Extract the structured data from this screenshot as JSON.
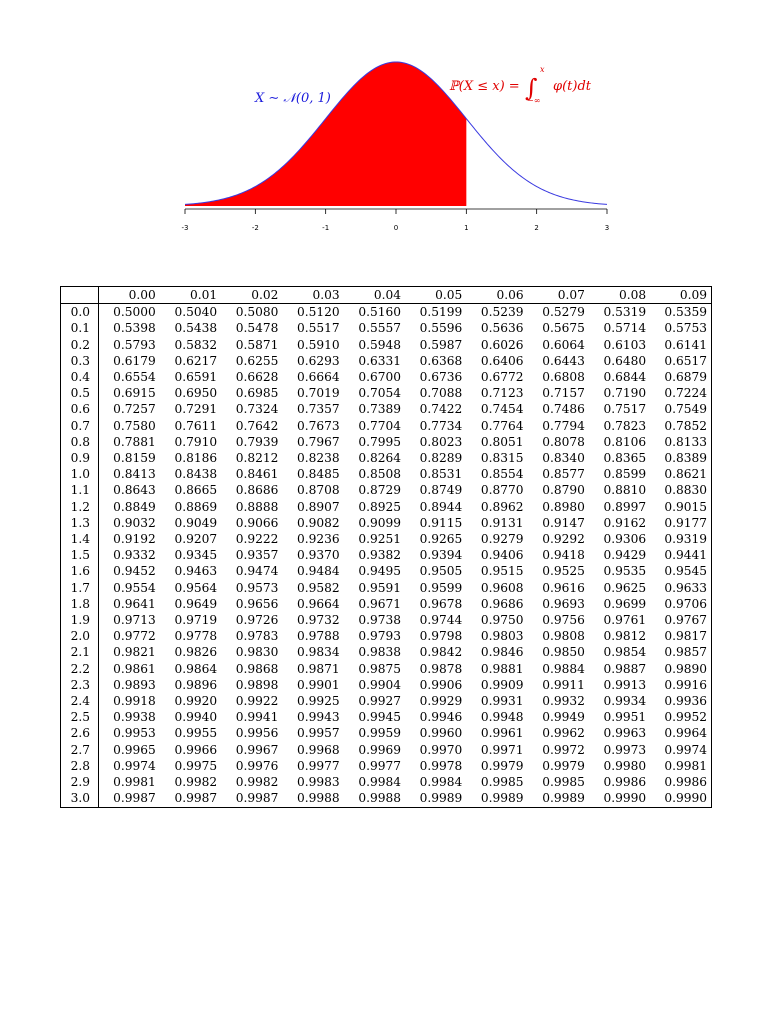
{
  "figure": {
    "distribution_label": "X ∼ 𝒩(0, 1)",
    "cdf_label_left": "ℙ(X ≤ x) =",
    "integral_symbol": "∫",
    "integral_upper": "x",
    "integral_lower": "−∞",
    "integrand": "φ(t)dt",
    "x_ticks": [
      "-3",
      "-2",
      "-1",
      "0",
      "1",
      "2",
      "3"
    ],
    "shaded_to_x": 1,
    "colors": {
      "curve": "#3a3ae0",
      "fill": "#ff0000",
      "dist_label": "#1a1adb",
      "cdf_label": "#e00000"
    }
  },
  "table": {
    "columns": [
      "0.00",
      "0.01",
      "0.02",
      "0.03",
      "0.04",
      "0.05",
      "0.06",
      "0.07",
      "0.08",
      "0.09"
    ],
    "rows": [
      {
        "z": "0.0",
        "v": [
          "0.5000",
          "0.5040",
          "0.5080",
          "0.5120",
          "0.5160",
          "0.5199",
          "0.5239",
          "0.5279",
          "0.5319",
          "0.5359"
        ]
      },
      {
        "z": "0.1",
        "v": [
          "0.5398",
          "0.5438",
          "0.5478",
          "0.5517",
          "0.5557",
          "0.5596",
          "0.5636",
          "0.5675",
          "0.5714",
          "0.5753"
        ]
      },
      {
        "z": "0.2",
        "v": [
          "0.5793",
          "0.5832",
          "0.5871",
          "0.5910",
          "0.5948",
          "0.5987",
          "0.6026",
          "0.6064",
          "0.6103",
          "0.6141"
        ]
      },
      {
        "z": "0.3",
        "v": [
          "0.6179",
          "0.6217",
          "0.6255",
          "0.6293",
          "0.6331",
          "0.6368",
          "0.6406",
          "0.6443",
          "0.6480",
          "0.6517"
        ]
      },
      {
        "z": "0.4",
        "v": [
          "0.6554",
          "0.6591",
          "0.6628",
          "0.6664",
          "0.6700",
          "0.6736",
          "0.6772",
          "0.6808",
          "0.6844",
          "0.6879"
        ]
      },
      {
        "z": "0.5",
        "v": [
          "0.6915",
          "0.6950",
          "0.6985",
          "0.7019",
          "0.7054",
          "0.7088",
          "0.7123",
          "0.7157",
          "0.7190",
          "0.7224"
        ]
      },
      {
        "z": "0.6",
        "v": [
          "0.7257",
          "0.7291",
          "0.7324",
          "0.7357",
          "0.7389",
          "0.7422",
          "0.7454",
          "0.7486",
          "0.7517",
          "0.7549"
        ]
      },
      {
        "z": "0.7",
        "v": [
          "0.7580",
          "0.7611",
          "0.7642",
          "0.7673",
          "0.7704",
          "0.7734",
          "0.7764",
          "0.7794",
          "0.7823",
          "0.7852"
        ]
      },
      {
        "z": "0.8",
        "v": [
          "0.7881",
          "0.7910",
          "0.7939",
          "0.7967",
          "0.7995",
          "0.8023",
          "0.8051",
          "0.8078",
          "0.8106",
          "0.8133"
        ]
      },
      {
        "z": "0.9",
        "v": [
          "0.8159",
          "0.8186",
          "0.8212",
          "0.8238",
          "0.8264",
          "0.8289",
          "0.8315",
          "0.8340",
          "0.8365",
          "0.8389"
        ]
      },
      {
        "z": "1.0",
        "v": [
          "0.8413",
          "0.8438",
          "0.8461",
          "0.8485",
          "0.8508",
          "0.8531",
          "0.8554",
          "0.8577",
          "0.8599",
          "0.8621"
        ]
      },
      {
        "z": "1.1",
        "v": [
          "0.8643",
          "0.8665",
          "0.8686",
          "0.8708",
          "0.8729",
          "0.8749",
          "0.8770",
          "0.8790",
          "0.8810",
          "0.8830"
        ]
      },
      {
        "z": "1.2",
        "v": [
          "0.8849",
          "0.8869",
          "0.8888",
          "0.8907",
          "0.8925",
          "0.8944",
          "0.8962",
          "0.8980",
          "0.8997",
          "0.9015"
        ]
      },
      {
        "z": "1.3",
        "v": [
          "0.9032",
          "0.9049",
          "0.9066",
          "0.9082",
          "0.9099",
          "0.9115",
          "0.9131",
          "0.9147",
          "0.9162",
          "0.9177"
        ]
      },
      {
        "z": "1.4",
        "v": [
          "0.9192",
          "0.9207",
          "0.9222",
          "0.9236",
          "0.9251",
          "0.9265",
          "0.9279",
          "0.9292",
          "0.9306",
          "0.9319"
        ]
      },
      {
        "z": "1.5",
        "v": [
          "0.9332",
          "0.9345",
          "0.9357",
          "0.9370",
          "0.9382",
          "0.9394",
          "0.9406",
          "0.9418",
          "0.9429",
          "0.9441"
        ]
      },
      {
        "z": "1.6",
        "v": [
          "0.9452",
          "0.9463",
          "0.9474",
          "0.9484",
          "0.9495",
          "0.9505",
          "0.9515",
          "0.9525",
          "0.9535",
          "0.9545"
        ]
      },
      {
        "z": "1.7",
        "v": [
          "0.9554",
          "0.9564",
          "0.9573",
          "0.9582",
          "0.9591",
          "0.9599",
          "0.9608",
          "0.9616",
          "0.9625",
          "0.9633"
        ]
      },
      {
        "z": "1.8",
        "v": [
          "0.9641",
          "0.9649",
          "0.9656",
          "0.9664",
          "0.9671",
          "0.9678",
          "0.9686",
          "0.9693",
          "0.9699",
          "0.9706"
        ]
      },
      {
        "z": "1.9",
        "v": [
          "0.9713",
          "0.9719",
          "0.9726",
          "0.9732",
          "0.9738",
          "0.9744",
          "0.9750",
          "0.9756",
          "0.9761",
          "0.9767"
        ]
      },
      {
        "z": "2.0",
        "v": [
          "0.9772",
          "0.9778",
          "0.9783",
          "0.9788",
          "0.9793",
          "0.9798",
          "0.9803",
          "0.9808",
          "0.9812",
          "0.9817"
        ]
      },
      {
        "z": "2.1",
        "v": [
          "0.9821",
          "0.9826",
          "0.9830",
          "0.9834",
          "0.9838",
          "0.9842",
          "0.9846",
          "0.9850",
          "0.9854",
          "0.9857"
        ]
      },
      {
        "z": "2.2",
        "v": [
          "0.9861",
          "0.9864",
          "0.9868",
          "0.9871",
          "0.9875",
          "0.9878",
          "0.9881",
          "0.9884",
          "0.9887",
          "0.9890"
        ]
      },
      {
        "z": "2.3",
        "v": [
          "0.9893",
          "0.9896",
          "0.9898",
          "0.9901",
          "0.9904",
          "0.9906",
          "0.9909",
          "0.9911",
          "0.9913",
          "0.9916"
        ]
      },
      {
        "z": "2.4",
        "v": [
          "0.9918",
          "0.9920",
          "0.9922",
          "0.9925",
          "0.9927",
          "0.9929",
          "0.9931",
          "0.9932",
          "0.9934",
          "0.9936"
        ]
      },
      {
        "z": "2.5",
        "v": [
          "0.9938",
          "0.9940",
          "0.9941",
          "0.9943",
          "0.9945",
          "0.9946",
          "0.9948",
          "0.9949",
          "0.9951",
          "0.9952"
        ]
      },
      {
        "z": "2.6",
        "v": [
          "0.9953",
          "0.9955",
          "0.9956",
          "0.9957",
          "0.9959",
          "0.9960",
          "0.9961",
          "0.9962",
          "0.9963",
          "0.9964"
        ]
      },
      {
        "z": "2.7",
        "v": [
          "0.9965",
          "0.9966",
          "0.9967",
          "0.9968",
          "0.9969",
          "0.9970",
          "0.9971",
          "0.9972",
          "0.9973",
          "0.9974"
        ]
      },
      {
        "z": "2.8",
        "v": [
          "0.9974",
          "0.9975",
          "0.9976",
          "0.9977",
          "0.9977",
          "0.9978",
          "0.9979",
          "0.9979",
          "0.9980",
          "0.9981"
        ]
      },
      {
        "z": "2.9",
        "v": [
          "0.9981",
          "0.9982",
          "0.9982",
          "0.9983",
          "0.9984",
          "0.9984",
          "0.9985",
          "0.9985",
          "0.9986",
          "0.9986"
        ]
      },
      {
        "z": "3.0",
        "v": [
          "0.9987",
          "0.9987",
          "0.9987",
          "0.9988",
          "0.9988",
          "0.9989",
          "0.9989",
          "0.9989",
          "0.9990",
          "0.9990"
        ]
      }
    ]
  }
}
